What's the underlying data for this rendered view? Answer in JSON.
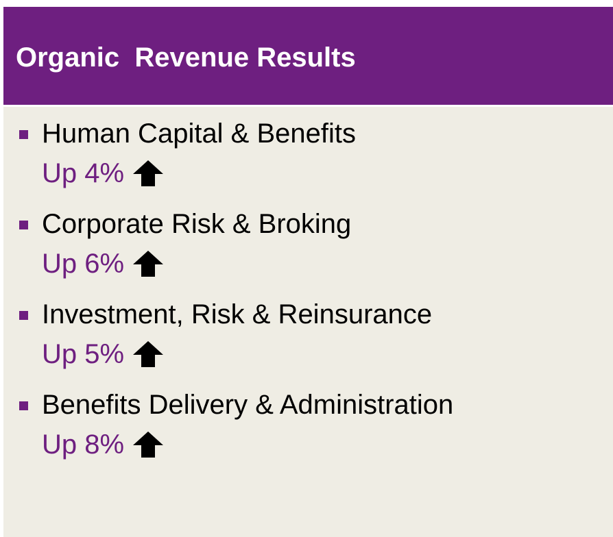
{
  "header": {
    "title": "Organic  Revenue Results"
  },
  "items": [
    {
      "label": "Human Capital & Benefits",
      "change": "Up 4%"
    },
    {
      "label": "Corporate Risk & Broking",
      "change": "Up 6%"
    },
    {
      "label": "Investment, Risk & Reinsurance",
      "change": "Up 5%"
    },
    {
      "label": "Benefits Delivery & Administration",
      "change": "Up 8%"
    }
  ]
}
